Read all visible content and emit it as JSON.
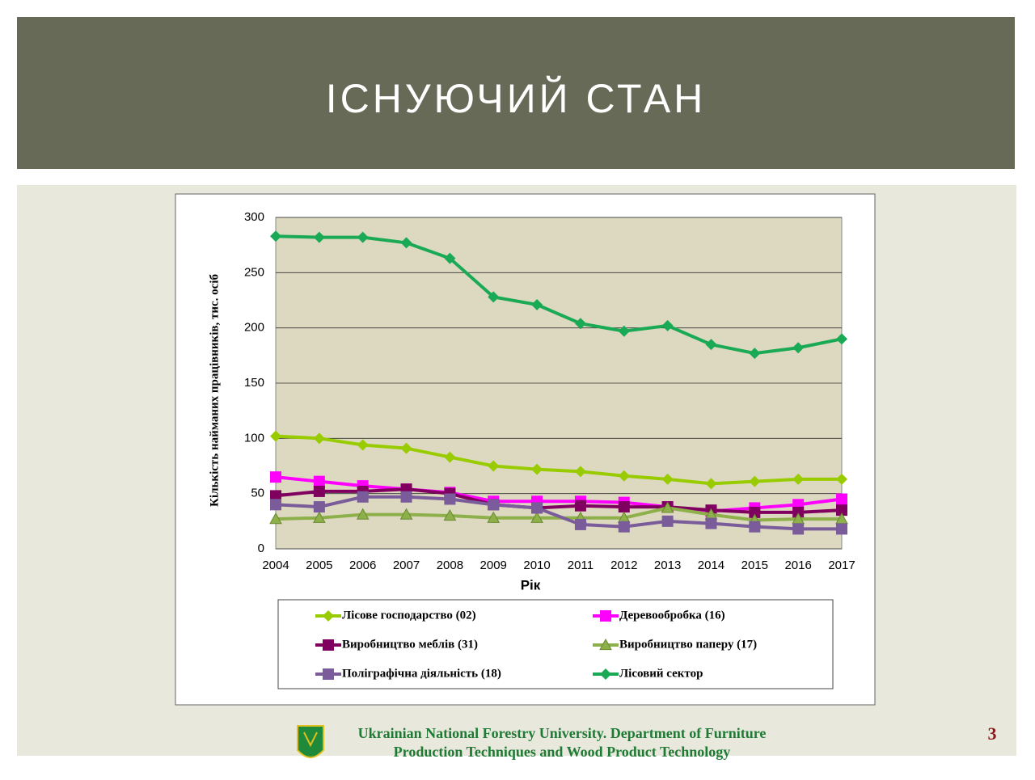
{
  "slide": {
    "title": "ІСНУЮЧИЙ СТАН",
    "footer": [
      "Ukrainian National Forestry University.  Department of Furniture",
      "Production Techniques and Wood Product Technology"
    ],
    "page_number": "3"
  },
  "chart_data": {
    "type": "line",
    "y_label": "Кількість найманих працівників, тис. осіб",
    "x_label": "Рік",
    "categories": [
      "2004",
      "2005",
      "2006",
      "2007",
      "2008",
      "2009",
      "2010",
      "2011",
      "2012",
      "2013",
      "2014",
      "2015",
      "2016",
      "2017"
    ],
    "ylim": [
      0,
      300
    ],
    "yticks": [
      0,
      50,
      100,
      150,
      200,
      250,
      300
    ],
    "grid": true,
    "series": [
      {
        "name": "Лісове господарство  (02)",
        "color": "#99cc00",
        "marker": "diamond",
        "values": [
          102,
          100,
          94,
          91,
          83,
          75,
          72,
          70,
          66,
          63,
          59,
          61,
          63,
          63
        ]
      },
      {
        "name": "Деревообробка  (16)",
        "color": "#ff00ff",
        "marker": "square",
        "values": [
          65,
          61,
          57,
          54,
          51,
          43,
          43,
          43,
          42,
          38,
          34,
          37,
          40,
          45
        ]
      },
      {
        "name": "Виробництво  меблів (31)",
        "color": "#800060",
        "marker": "square",
        "values": [
          48,
          52,
          52,
          54,
          50,
          40,
          37,
          39,
          38,
          38,
          35,
          33,
          33,
          35
        ]
      },
      {
        "name": "Виробництво  паперу (17)",
        "color": "#8db04a",
        "marker": "triangle",
        "values": [
          27,
          28,
          31,
          31,
          30,
          28,
          28,
          28,
          28,
          37,
          31,
          26,
          27,
          27
        ]
      },
      {
        "name": "Поліграфічна  діяльність (18)",
        "color": "#7a5c9a",
        "marker": "square",
        "values": [
          40,
          38,
          47,
          47,
          45,
          40,
          37,
          22,
          20,
          25,
          23,
          20,
          18,
          18
        ]
      },
      {
        "name": "Лісовий сектор",
        "color": "#1aaa55",
        "marker": "diamond",
        "values": [
          283,
          282,
          282,
          277,
          263,
          228,
          221,
          204,
          197,
          202,
          185,
          177,
          182,
          190
        ]
      }
    ]
  }
}
